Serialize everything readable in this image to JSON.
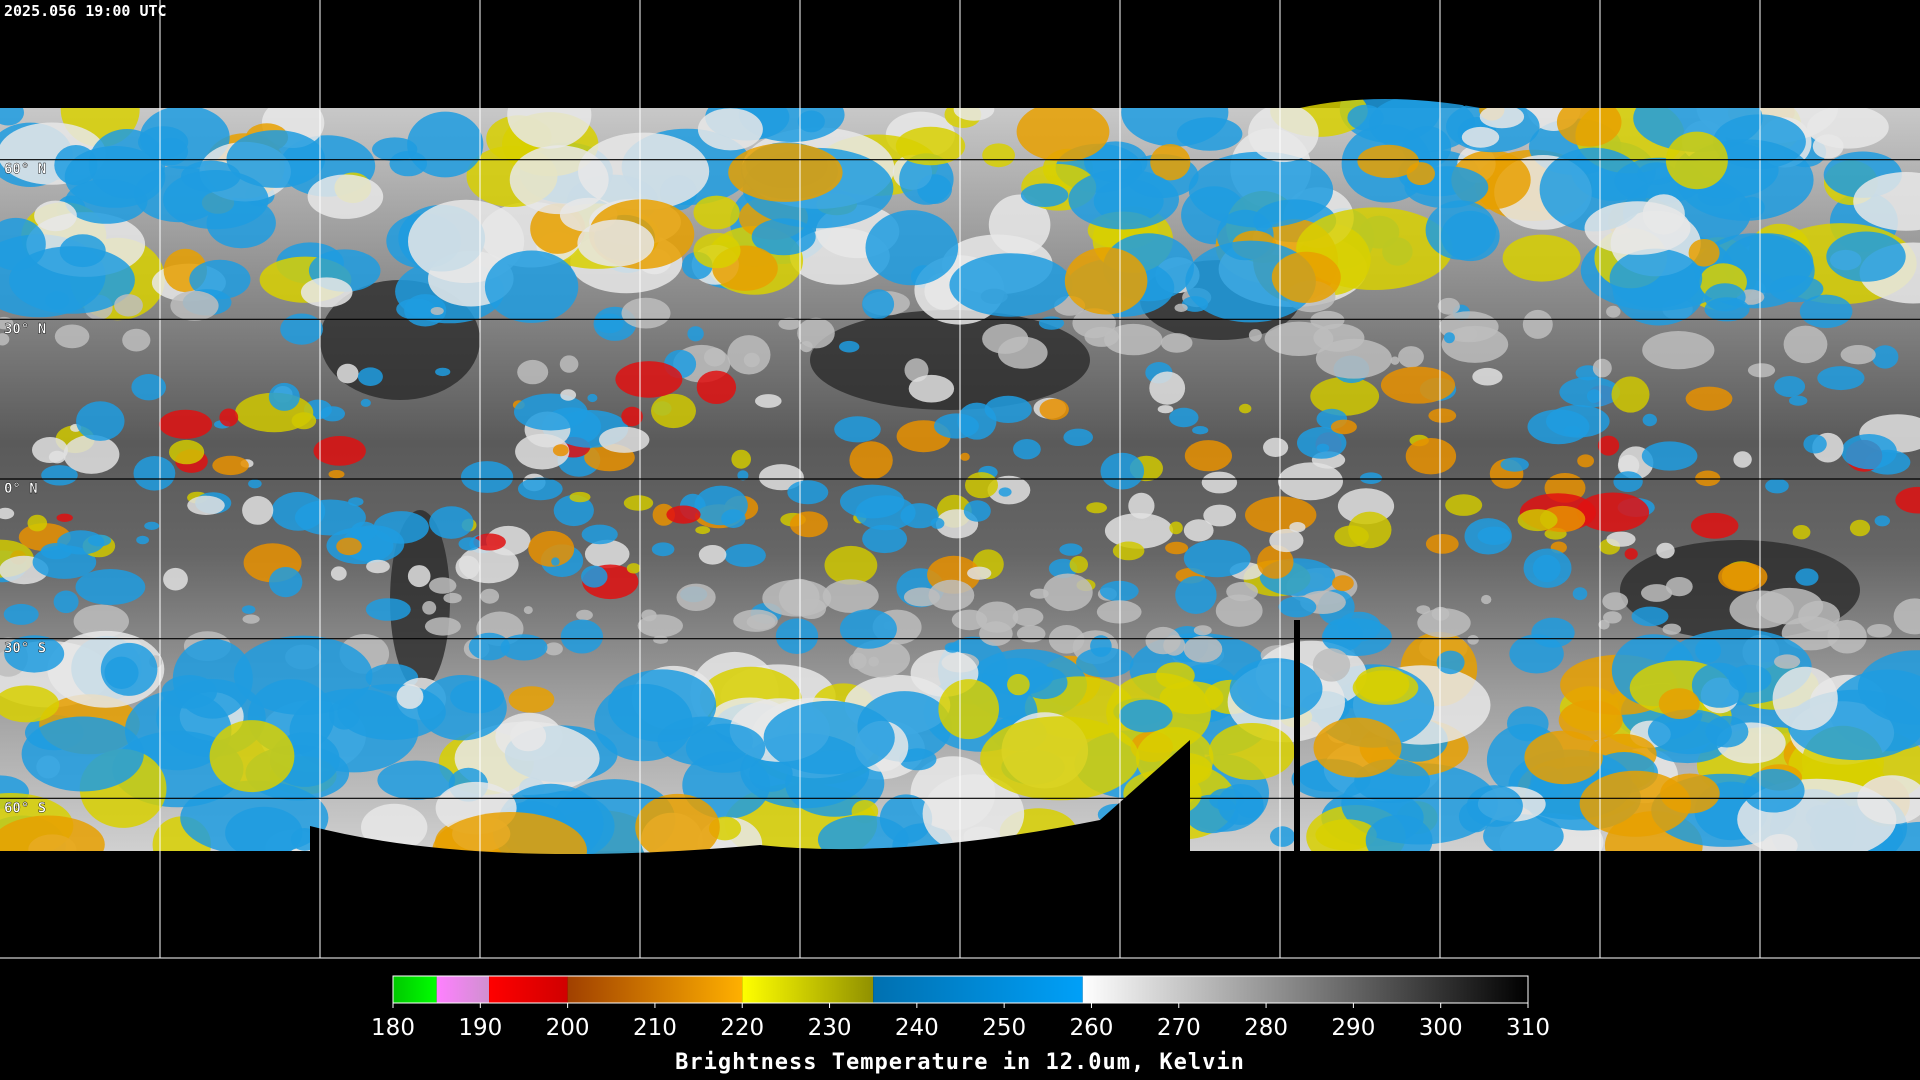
{
  "timestamp": "2025.056 19:00 UTC",
  "graticule": {
    "lat_labels": [
      {
        "value": 60,
        "label": "60° N"
      },
      {
        "value": 30,
        "label": "30° N"
      },
      {
        "value": 0,
        "label": "0° N"
      },
      {
        "value": -30,
        "label": "30° S"
      },
      {
        "value": -60,
        "label": "60° S"
      }
    ]
  },
  "colorbar": {
    "title": "Brightness Temperature in 12.0um, Kelvin",
    "range": [
      180,
      310
    ],
    "ticks": [
      180,
      190,
      200,
      210,
      220,
      230,
      240,
      250,
      260,
      270,
      280,
      290,
      300,
      310
    ],
    "bands": [
      {
        "from": 180,
        "to": 185,
        "colors": [
          "#00c800",
          "#00ff00"
        ]
      },
      {
        "from": 185,
        "to": 191,
        "colors": [
          "#ff80ff",
          "#d090d0"
        ]
      },
      {
        "from": 191,
        "to": 200,
        "colors": [
          "#ff0000",
          "#d00000"
        ]
      },
      {
        "from": 200,
        "to": 220,
        "colors": [
          "#a04000",
          "#ffb000"
        ]
      },
      {
        "from": 220,
        "to": 235,
        "colors": [
          "#ffff00",
          "#909000"
        ]
      },
      {
        "from": 235,
        "to": 259,
        "colors": [
          "#0070b0",
          "#00a0f8"
        ]
      },
      {
        "from": 259,
        "to": 310,
        "colors": [
          "#ffffff",
          "#000000"
        ]
      }
    ]
  }
}
